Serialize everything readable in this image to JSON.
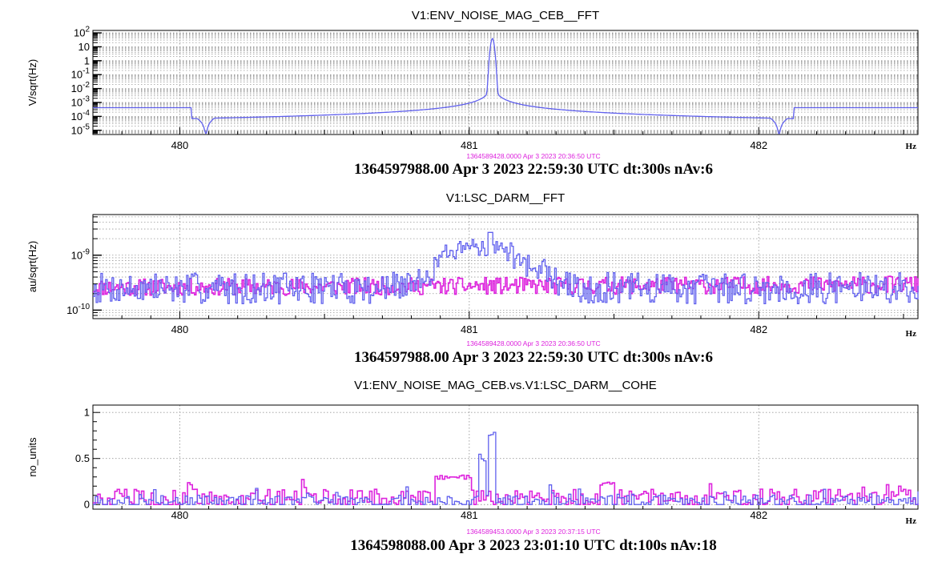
{
  "chart_data": [
    {
      "type": "line",
      "title": "V1:ENV_NOISE_MAG_CEB__FFT",
      "ylabel": "V/sqrt(Hz)",
      "xlabel": "Hz",
      "xlim": [
        479.7,
        482.55
      ],
      "ylim": [
        5e-06,
        150
      ],
      "yscale": "log",
      "grid": true,
      "x_ticks": [
        "480",
        "481",
        "482"
      ],
      "y_ticks": [
        {
          "base": "10",
          "exp": "2"
        },
        {
          "base": "10",
          "exp": ""
        },
        {
          "base": "1",
          "exp": ""
        },
        {
          "base": "10",
          "exp": "-1"
        },
        {
          "base": "10",
          "exp": "-2"
        },
        {
          "base": "10",
          "exp": "-3"
        },
        {
          "base": "10",
          "exp": "-4"
        },
        {
          "base": "10",
          "exp": "-5"
        }
      ],
      "ref_timestamp": "1364589428.0000 Apr 3 2023 20:36:50 UTC",
      "timestamp": "1364597988.00 Apr 3 2023 22:59:30 UTC dt:300s nAv:6",
      "series": [
        {
          "color": "#6060ee",
          "generator": "line_peak",
          "params": {
            "f0": 481.08,
            "peak": 40,
            "amp": 0.0004,
            "notch1": 480.09,
            "notch2": 482.07,
            "floor": 0.00042
          }
        }
      ]
    },
    {
      "type": "line",
      "title": "V1:LSC_DARM__FFT",
      "ylabel": "au/sqrt(Hz)",
      "xlabel": "Hz",
      "xlim": [
        479.7,
        482.55
      ],
      "ylim": [
        7e-11,
        5.5e-09
      ],
      "yscale": "log",
      "grid": true,
      "x_ticks": [
        "480",
        "481",
        "482"
      ],
      "y_ticks": [
        {
          "base": "10",
          "exp": "-9"
        },
        {
          "base": "10",
          "exp": "-10"
        }
      ],
      "ref_timestamp": "1364589428.0000 Apr 3 2023 20:36:50 UTC",
      "timestamp": "1364597988.00 Apr 3 2023 22:59:30 UTC dt:300s nAv:6",
      "series": [
        {
          "color": "#dd22dd",
          "generator": "noise",
          "params": {
            "level": 2.6e-10,
            "spread": 0.12,
            "trend": 0.12,
            "seed": 11
          }
        },
        {
          "color": "#6060ee",
          "generator": "noise_bump",
          "params": {
            "level": 2.5e-10,
            "spread": 0.22,
            "seed": 7,
            "bump_center": 481.05,
            "bump_width": 0.14,
            "bump_amp": 1.3e-09
          }
        }
      ]
    },
    {
      "type": "line",
      "title": "V1:ENV_NOISE_MAG_CEB.vs.V1:LSC_DARM__COHE",
      "ylabel": "no_units",
      "xlabel": "Hz",
      "xlim": [
        479.7,
        482.55
      ],
      "ylim": [
        -0.05,
        1.08
      ],
      "yscale": "linear",
      "grid": true,
      "x_ticks": [
        "480",
        "481",
        "482"
      ],
      "y_ticks": [
        {
          "base": "1",
          "exp": ""
        },
        {
          "base": "0.5",
          "exp": ""
        },
        {
          "base": "0",
          "exp": ""
        }
      ],
      "ref_timestamp": "1364589453.0000 Apr 3 2023 20:37:15 UTC",
      "timestamp": "1364598088.00 Apr 3 2023 23:01:10 UTC dt:100s nAv:18",
      "series": [
        {
          "color": "#dd22dd",
          "generator": "cohe",
          "params": {
            "seed": 5,
            "base": 0.08,
            "spread": 0.14,
            "step": 0.02,
            "spikes": [
              [
                480.88,
                481.0,
                0.32
              ],
              [
                481.45,
                481.5,
                0.25
              ]
            ]
          }
        },
        {
          "color": "#6060ee",
          "generator": "cohe",
          "params": {
            "seed": 3,
            "base": 0.04,
            "spread": 0.1,
            "step": 0.01,
            "spikes": [
              [
                481.06,
                481.085,
                0.88
              ],
              [
                481.03,
                481.05,
                0.55
              ]
            ]
          }
        }
      ]
    }
  ]
}
